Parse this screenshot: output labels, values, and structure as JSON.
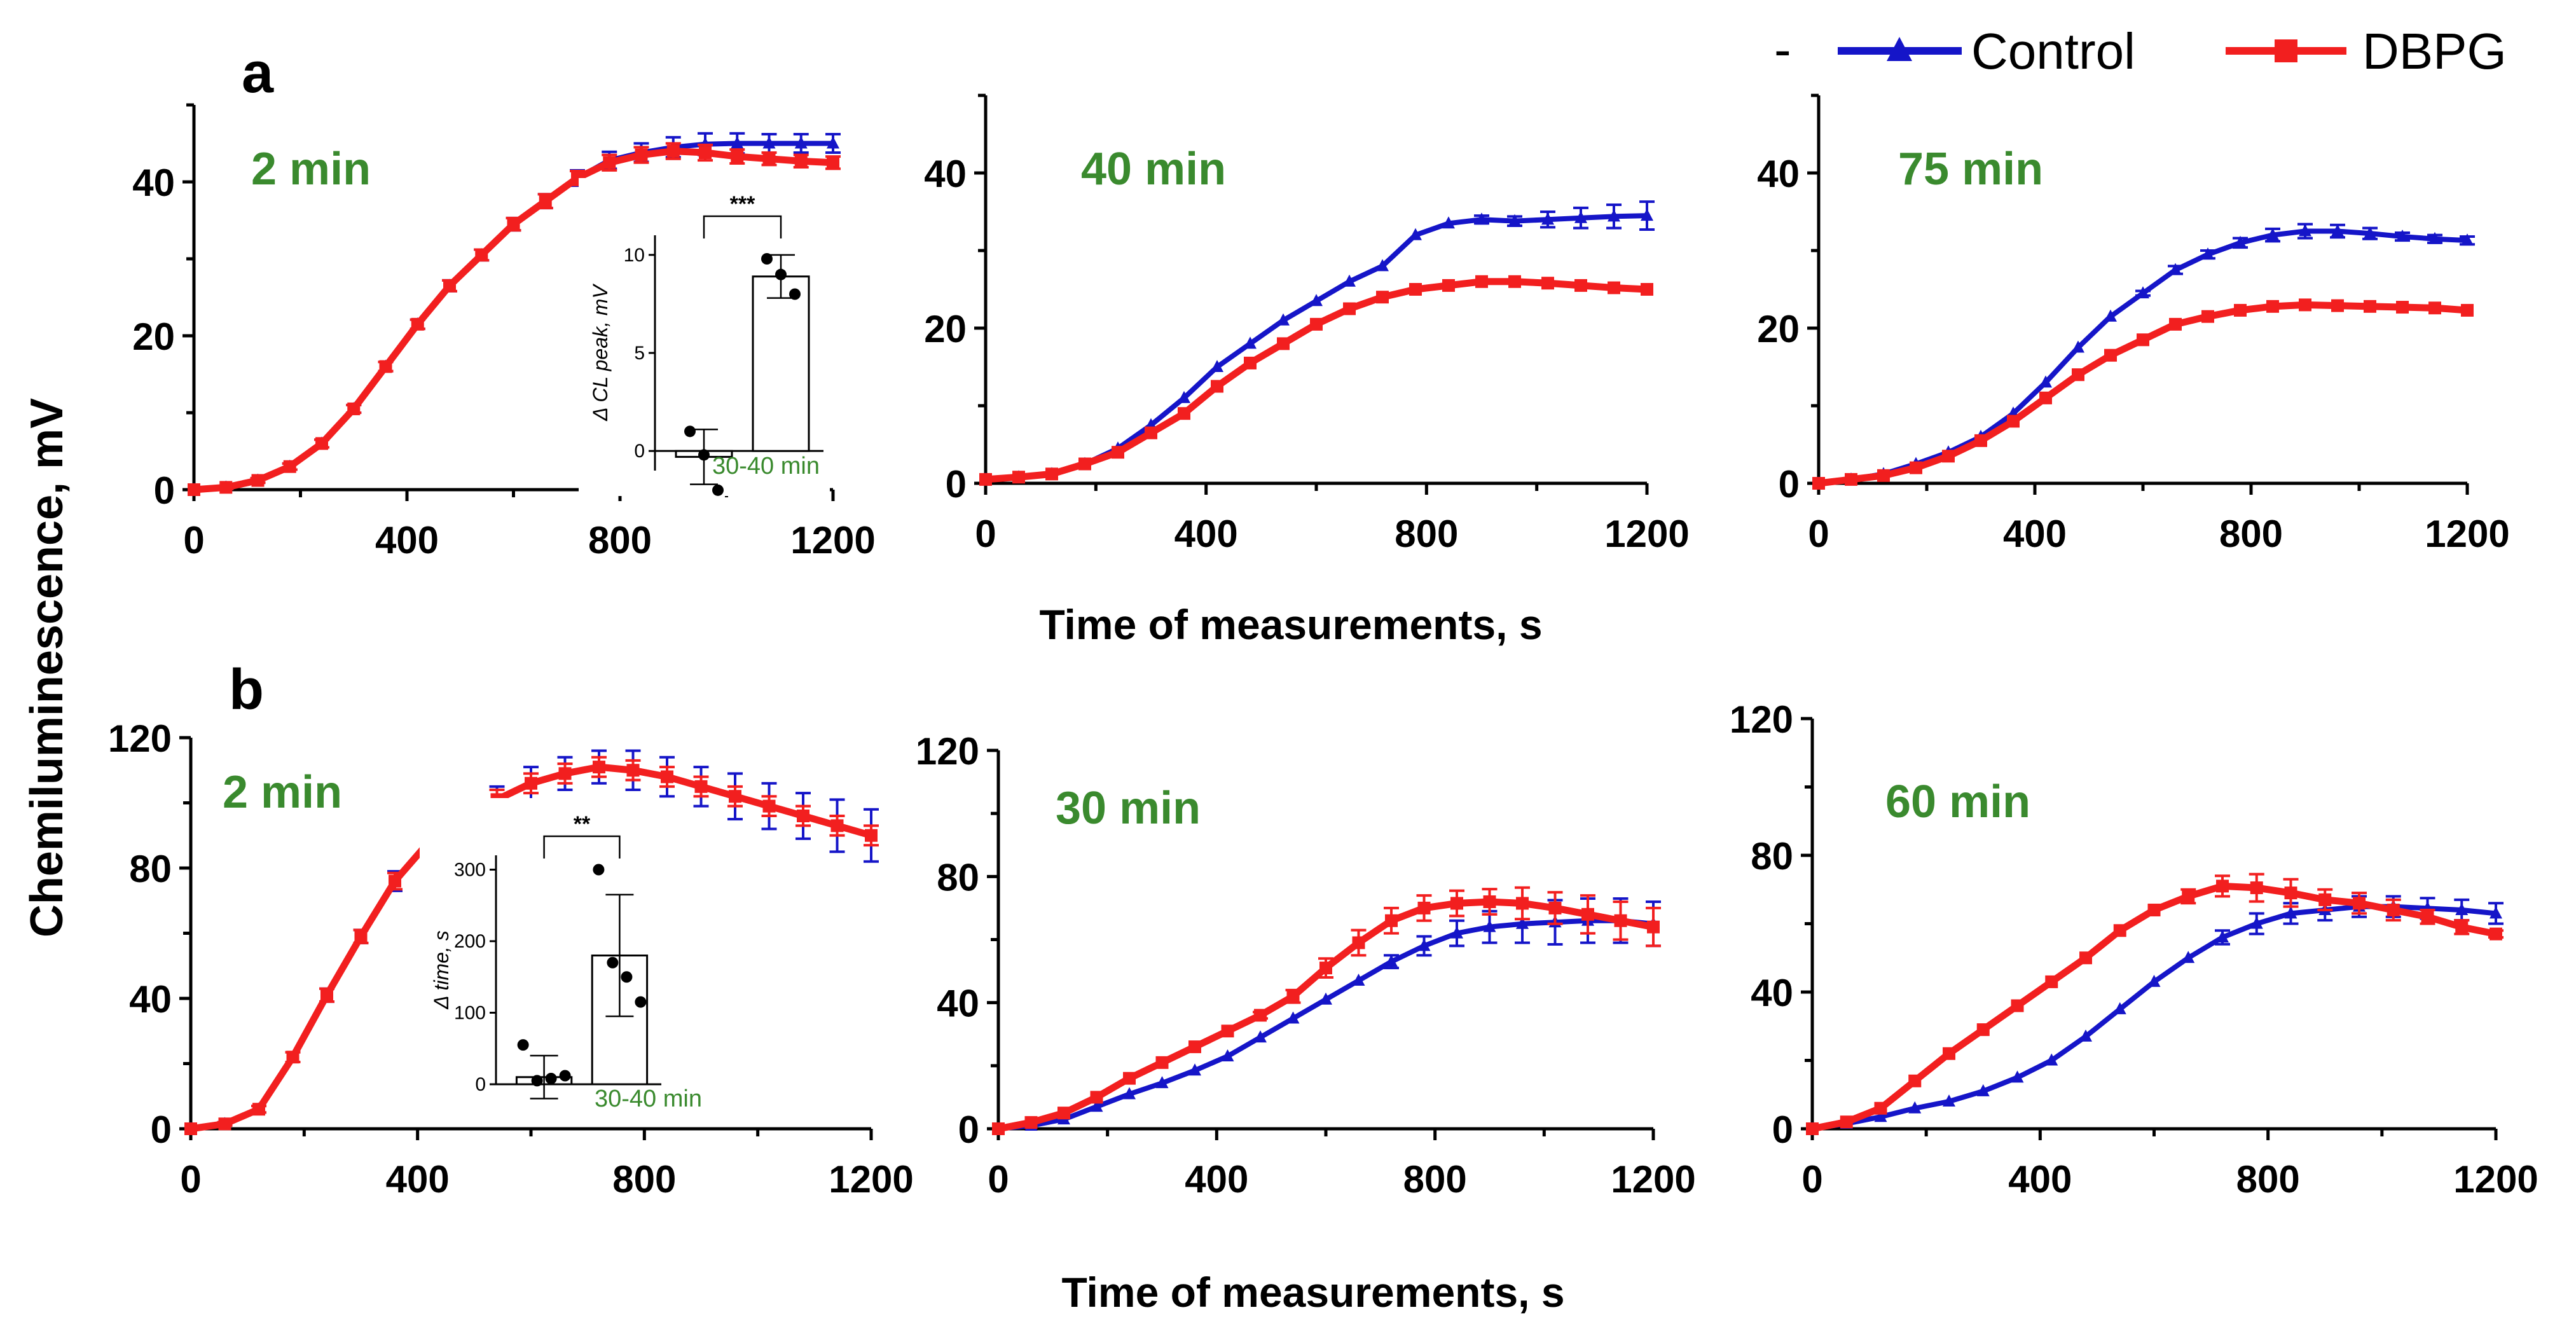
{
  "figure": {
    "panel_a_letter": "a",
    "panel_b_letter": "b",
    "ylabel": "Chemiluminescence, mV",
    "xlabel_a": "Time of measurements, s",
    "xlabel_b": "Time of measurements, s",
    "legend": {
      "dash": "-",
      "control_label": "Control",
      "dbpg_label": "DBPG",
      "control_color": "#1515c8",
      "dbpg_color": "#f21f1f"
    },
    "title_color": "#3a8a2e"
  },
  "chart_data": [
    {
      "id": "a1",
      "type": "line",
      "title": "2 min",
      "xlim": [
        0,
        1200
      ],
      "ylim": [
        0,
        50
      ],
      "xticks": [
        0,
        400,
        800,
        1200
      ],
      "yticks": [
        0,
        20,
        40
      ],
      "x": [
        0,
        60,
        120,
        180,
        240,
        300,
        360,
        420,
        480,
        540,
        600,
        660,
        720,
        780,
        840,
        900,
        960,
        1020,
        1080,
        1140,
        1200
      ],
      "series": [
        {
          "name": "Control",
          "values": [
            0,
            0.3,
            1.2,
            3,
            6,
            10.5,
            16,
            21.5,
            26.5,
            30.5,
            34.5,
            37.5,
            40.5,
            42.8,
            43.8,
            44.5,
            44.9,
            45,
            45,
            45,
            45
          ],
          "err": [
            0,
            0.2,
            0.3,
            0.4,
            0.5,
            0.5,
            0.6,
            0.6,
            0.7,
            0.7,
            0.8,
            0.9,
            1,
            1.1,
            1.2,
            1.3,
            1.4,
            1.3,
            1.2,
            1.2,
            1.2
          ]
        },
        {
          "name": "DBPG",
          "values": [
            0,
            0.3,
            1.2,
            3,
            6,
            10.5,
            16,
            21.5,
            26.5,
            30.5,
            34.5,
            37.5,
            40.5,
            42.5,
            43.5,
            44,
            43.8,
            43.3,
            43,
            42.7,
            42.5
          ],
          "err": [
            0,
            0.2,
            0.3,
            0.4,
            0.5,
            0.5,
            0.6,
            0.6,
            0.7,
            0.7,
            0.8,
            0.9,
            0.9,
            1,
            1,
            1,
            1,
            0.9,
            0.8,
            0.8,
            0.8
          ]
        }
      ],
      "inset": {
        "ylabel": "Δ CL peak, mV",
        "ylim": [
          -1,
          11
        ],
        "yticks": [
          0,
          5,
          10
        ],
        "bars": [
          {
            "value": -0.3,
            "err": 1.4,
            "points": [
              1,
              -0.2,
              -2
            ]
          },
          {
            "value": 8.9,
            "err": 1.1,
            "points": [
              9.8,
              9,
              8
            ]
          }
        ],
        "sig": "***",
        "caption": "30-40 min"
      }
    },
    {
      "id": "a2",
      "type": "line",
      "title": "40 min",
      "xlim": [
        0,
        1200
      ],
      "ylim": [
        0,
        50
      ],
      "xticks": [
        0,
        400,
        800,
        1200
      ],
      "yticks": [
        0,
        20,
        40
      ],
      "x": [
        0,
        60,
        120,
        180,
        240,
        300,
        360,
        420,
        480,
        540,
        600,
        660,
        720,
        780,
        840,
        900,
        960,
        1020,
        1080,
        1140,
        1200
      ],
      "series": [
        {
          "name": "Control",
          "values": [
            0.5,
            0.8,
            1.2,
            2.5,
            4.5,
            7.5,
            11,
            15,
            18,
            21,
            23.5,
            26,
            28,
            32,
            33.5,
            34,
            33.8,
            34,
            34.2,
            34.4,
            34.5
          ],
          "err": [
            0,
            0,
            0,
            0,
            0,
            0,
            0,
            0,
            0,
            0,
            0,
            0,
            0,
            0,
            0,
            0.5,
            0.6,
            1,
            1.3,
            1.5,
            1.8
          ]
        },
        {
          "name": "DBPG",
          "values": [
            0.5,
            0.8,
            1.2,
            2.5,
            4,
            6.5,
            9,
            12.5,
            15.5,
            18,
            20.5,
            22.5,
            24,
            25,
            25.5,
            26,
            26,
            25.8,
            25.5,
            25.2,
            25
          ],
          "err": [
            0,
            0,
            0,
            0,
            0,
            0,
            0,
            0,
            0,
            0,
            0,
            0,
            0,
            0,
            0,
            0,
            0,
            0,
            0,
            0,
            0
          ]
        }
      ]
    },
    {
      "id": "a3",
      "type": "line",
      "title": "75 min",
      "xlim": [
        0,
        1200
      ],
      "ylim": [
        0,
        50
      ],
      "xticks": [
        0,
        400,
        800,
        1200
      ],
      "yticks": [
        0,
        20,
        40
      ],
      "x": [
        0,
        60,
        120,
        180,
        240,
        300,
        360,
        420,
        480,
        540,
        600,
        660,
        720,
        780,
        840,
        900,
        960,
        1020,
        1080,
        1140,
        1200
      ],
      "series": [
        {
          "name": "Control",
          "values": [
            0,
            0.5,
            1.2,
            2.5,
            4,
            6,
            9,
            13,
            17.5,
            21.5,
            24.5,
            27.5,
            29.5,
            31,
            32,
            32.5,
            32.5,
            32.2,
            31.8,
            31.5,
            31.3
          ],
          "err": [
            0,
            0,
            0,
            0,
            0,
            0,
            0,
            0,
            0,
            0,
            0.3,
            0.5,
            0.5,
            0.6,
            0.8,
            0.9,
            0.8,
            0.7,
            0.5,
            0.5,
            0.5
          ]
        },
        {
          "name": "DBPG",
          "values": [
            0,
            0.5,
            1,
            2,
            3.5,
            5.5,
            8,
            11,
            14,
            16.5,
            18.5,
            20.5,
            21.5,
            22.3,
            22.8,
            23,
            22.9,
            22.8,
            22.7,
            22.6,
            22.3
          ],
          "err": [
            0,
            0,
            0,
            0,
            0,
            0,
            0,
            0,
            0,
            0,
            0,
            0,
            0,
            0,
            0,
            0,
            0,
            0,
            0,
            0,
            0
          ]
        }
      ]
    },
    {
      "id": "b1",
      "type": "line",
      "title": "2 min",
      "xlim": [
        0,
        1200
      ],
      "ylim": [
        0,
        120
      ],
      "xticks": [
        0,
        400,
        800,
        1200
      ],
      "yticks": [
        0,
        40,
        80,
        120
      ],
      "x": [
        0,
        60,
        120,
        180,
        240,
        300,
        360,
        420,
        480,
        540,
        600,
        660,
        720,
        780,
        840,
        900,
        960,
        1020,
        1080,
        1140,
        1200
      ],
      "series": [
        {
          "name": "Control",
          "values": [
            0,
            1.5,
            6,
            22,
            41,
            59,
            76,
            88,
            95,
            101,
            106,
            109,
            111,
            110,
            108,
            105,
            102,
            99,
            96,
            93,
            90
          ],
          "err": [
            0,
            0.5,
            1,
            1.5,
            2,
            2,
            3,
            3,
            4,
            4,
            5,
            5,
            5,
            6,
            6,
            6,
            7,
            7,
            7,
            8,
            8
          ]
        },
        {
          "name": "DBPG",
          "values": [
            0,
            1.5,
            6,
            22,
            41,
            59,
            76,
            88,
            95,
            101,
            106,
            109,
            111,
            110,
            108,
            105,
            102,
            99,
            96,
            93,
            90
          ],
          "err": [
            0,
            0.5,
            1,
            1.5,
            2,
            2,
            2.5,
            2.5,
            3,
            3,
            3,
            3,
            3,
            3,
            3,
            3,
            3,
            3,
            3,
            3,
            3
          ]
        }
      ],
      "inset": {
        "ylabel": "Δ time, s",
        "ylim": [
          0,
          320
        ],
        "yticks": [
          0,
          100,
          200,
          300
        ],
        "bars": [
          {
            "value": 10,
            "err": 30,
            "points": [
              55,
              5,
              8,
              12
            ]
          },
          {
            "value": 180,
            "err": 85,
            "points": [
              300,
              170,
              150,
              115
            ]
          }
        ],
        "sig": "**",
        "caption": "30-40 min"
      }
    },
    {
      "id": "b2",
      "type": "line",
      "title": "30 min",
      "xlim": [
        0,
        1200
      ],
      "ylim": [
        0,
        120
      ],
      "xticks": [
        0,
        400,
        800,
        1200
      ],
      "yticks": [
        0,
        40,
        80,
        120
      ],
      "x": [
        0,
        60,
        120,
        180,
        240,
        300,
        360,
        420,
        480,
        540,
        600,
        660,
        720,
        780,
        840,
        900,
        960,
        1020,
        1080,
        1140,
        1200
      ],
      "series": [
        {
          "name": "Control",
          "values": [
            0,
            1,
            3,
            7,
            11,
            14.5,
            18.5,
            23,
            29,
            35,
            41,
            47,
            53,
            58,
            62,
            64,
            65,
            65.5,
            66,
            66,
            65
          ],
          "err": [
            0,
            0,
            0,
            0,
            0,
            0,
            0,
            0,
            0,
            0,
            0,
            0,
            2,
            3,
            4,
            5,
            6,
            7,
            7,
            7,
            7
          ]
        },
        {
          "name": "DBPG",
          "values": [
            0,
            2,
            5,
            10,
            16,
            21,
            26,
            31,
            36,
            42,
            51,
            59,
            66,
            70,
            71.5,
            72,
            71.5,
            70,
            68,
            66,
            64
          ],
          "err": [
            0,
            0,
            0,
            0,
            0,
            0,
            0,
            0,
            1,
            2,
            3,
            4,
            4,
            4,
            4,
            4,
            5,
            5,
            6,
            6,
            6
          ]
        }
      ]
    },
    {
      "id": "b3",
      "type": "line",
      "title": "60 min",
      "xlim": [
        0,
        1200
      ],
      "ylim": [
        0,
        120
      ],
      "xticks": [
        0,
        400,
        800,
        1200
      ],
      "yticks": [
        0,
        40,
        80,
        120
      ],
      "x": [
        0,
        60,
        120,
        180,
        240,
        300,
        360,
        420,
        480,
        540,
        600,
        660,
        720,
        780,
        840,
        900,
        960,
        1020,
        1080,
        1140,
        1200
      ],
      "series": [
        {
          "name": "Control",
          "values": [
            0,
            1.5,
            3.5,
            6,
            8,
            11,
            15,
            20,
            27,
            35,
            43,
            50,
            56,
            60,
            63,
            64,
            65,
            65,
            64.5,
            64,
            63
          ],
          "err": [
            0,
            0,
            0,
            0,
            0,
            0,
            0,
            0,
            0,
            0,
            0,
            0,
            2,
            3,
            3,
            3,
            3,
            3,
            3,
            3,
            3
          ]
        },
        {
          "name": "DBPG",
          "values": [
            0,
            2,
            6,
            14,
            22,
            29,
            36,
            43,
            50,
            58,
            64,
            68,
            71,
            70.5,
            69,
            67,
            66,
            64,
            62,
            59,
            57
          ],
          "err": [
            0,
            0,
            0,
            0,
            0,
            0,
            0,
            0,
            0,
            0,
            0,
            2,
            3,
            4,
            4,
            3,
            3,
            3,
            2,
            2,
            1
          ]
        }
      ]
    }
  ]
}
